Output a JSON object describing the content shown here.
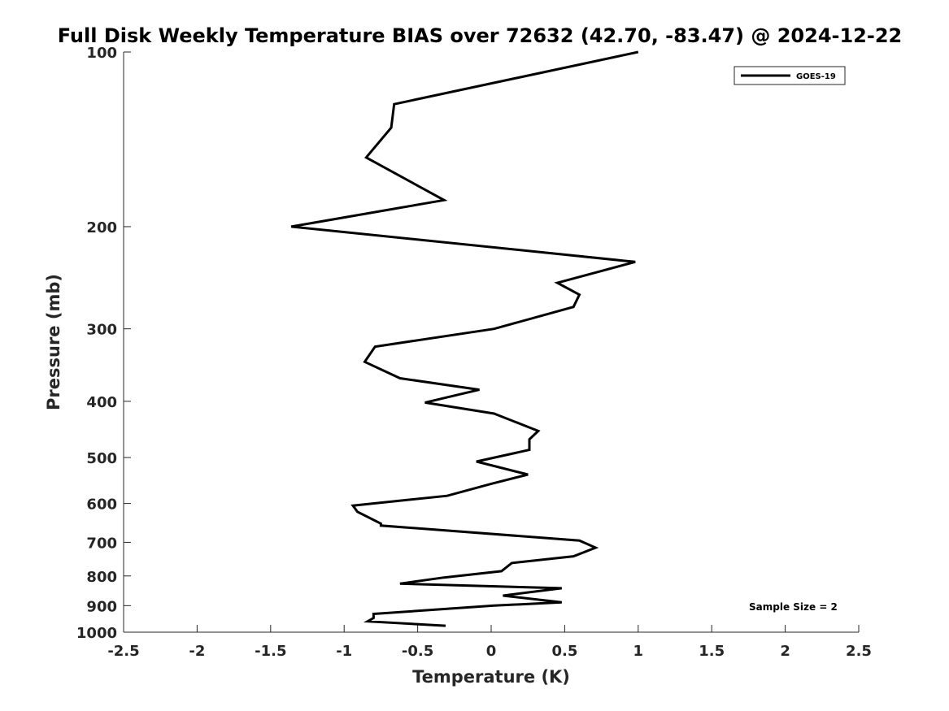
{
  "chart_data": {
    "type": "line",
    "title": "Full Disk Weekly Temperature BIAS over 72632 (42.70, -83.47) @ 2024-12-22",
    "xlabel": "Temperature (K)",
    "ylabel": "Pressure (mb)",
    "xlim": [
      -2.5,
      2.5
    ],
    "ylim": [
      1000,
      100
    ],
    "y_scale": "log",
    "y_reversed": true,
    "grid": false,
    "x_ticks": [
      -2.5,
      -2,
      -1.5,
      -1,
      -0.5,
      0,
      0.5,
      1,
      1.5,
      2,
      2.5
    ],
    "x_tick_labels": [
      "-2.5",
      "-2",
      "-1.5",
      "-1",
      "-0.5",
      "0",
      "0.5",
      "1",
      "1.5",
      "2",
      "2.5"
    ],
    "y_ticks": [
      100,
      200,
      300,
      400,
      500,
      600,
      700,
      800,
      900,
      1000
    ],
    "y_tick_labels": [
      "100",
      "200",
      "300",
      "400",
      "500",
      "600",
      "700",
      "800",
      "900",
      "1000"
    ],
    "legend_position": "top-right",
    "line_color": "#000000",
    "series": [
      {
        "name": "GOES-19",
        "x": [
          1.0,
          -0.66,
          -0.68,
          -0.85,
          -0.32,
          -1.36,
          0.98,
          0.45,
          0.6,
          0.56,
          0.02,
          -0.79,
          -0.86,
          -0.62,
          -0.08,
          -0.45,
          0.02,
          0.32,
          0.26,
          0.26,
          -0.1,
          0.25,
          0.0,
          -0.3,
          -0.94,
          -0.91,
          -0.75,
          -0.75,
          0.6,
          0.71,
          0.56,
          0.14,
          0.07,
          -0.32,
          -0.62,
          0.48,
          0.08,
          0.48,
          0.02,
          -0.8,
          -0.8,
          -0.84,
          -0.31
        ],
        "y": [
          100,
          123,
          135,
          152,
          180,
          200,
          230,
          250,
          262,
          275,
          300,
          322,
          342,
          365,
          382,
          402,
          420,
          450,
          465,
          485,
          508,
          535,
          555,
          582,
          605,
          620,
          650,
          655,
          695,
          715,
          740,
          760,
          785,
          805,
          825,
          840,
          865,
          888,
          900,
          930,
          945,
          958,
          975
        ]
      }
    ],
    "annotations": [
      "Sample Size = 2"
    ]
  }
}
